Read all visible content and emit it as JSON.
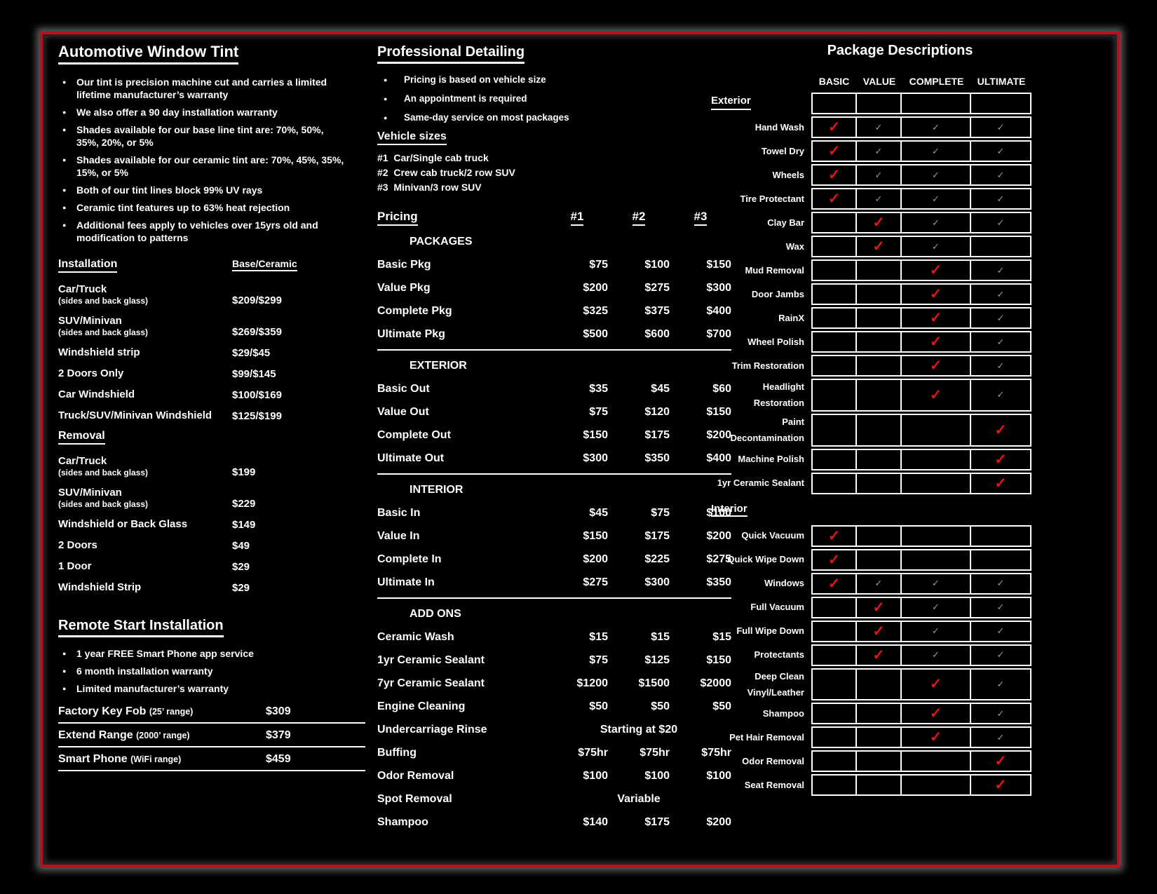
{
  "colors": {
    "frame_red": "#b5121b",
    "check_red": "#e31515",
    "check_gray": "#9a9a9a",
    "grid_line": "#ffffff",
    "background": "#000000",
    "text": "#ffffff"
  },
  "tint": {
    "title": "Automotive Window Tint",
    "bullets": [
      "Our tint is precision machine cut and carries a limited lifetime manufacturer’s warranty",
      "We also offer a 90 day installation warranty",
      "Shades available for our base line tint are: 70%, 50%, 35%, 20%, or 5%",
      "Shades available for our ceramic tint are: 70%, 45%, 35%, 15%, or 5%",
      "Both of our tint lines block 99% UV rays",
      "Ceramic tint features up to 63% heat rejection",
      "Additional fees apply to vehicles over 15yrs old and modification to patterns"
    ],
    "installation": {
      "heading": "Installation",
      "price_heading": "Base/Ceramic",
      "rows": [
        {
          "label": "Car/Truck",
          "sub": "(sides and back glass)",
          "price": "$209/$299"
        },
        {
          "label": "SUV/Minivan",
          "sub": "(sides and back glass)",
          "price": "$269/$359"
        },
        {
          "label": "Windshield strip",
          "sub": "",
          "price": "$29/$45"
        },
        {
          "label": "2 Doors Only",
          "sub": "",
          "price": "$99/$145"
        },
        {
          "label": "Car Windshield",
          "sub": "",
          "price": "$100/$169"
        },
        {
          "label": "Truck/SUV/Minivan Windshield",
          "sub": "",
          "price": "$125/$199"
        }
      ]
    },
    "removal": {
      "heading": "Removal",
      "rows": [
        {
          "label": "Car/Truck",
          "sub": "(sides and back glass)",
          "price": "$199"
        },
        {
          "label": "SUV/Minivan",
          "sub": "(sides and back glass)",
          "price": "$229"
        },
        {
          "label": "Windshield or Back Glass",
          "sub": "",
          "price": "$149"
        },
        {
          "label": "2 Doors",
          "sub": "",
          "price": "$49"
        },
        {
          "label": "1 Door",
          "sub": "",
          "price": "$29"
        },
        {
          "label": "Windshield Strip",
          "sub": "",
          "price": "$29"
        }
      ]
    }
  },
  "remote_start": {
    "title": "Remote Start Installation",
    "bullets": [
      "1 year FREE Smart Phone app service",
      "6 month installation warranty",
      "Limited manufacturer’s warranty"
    ],
    "rows": [
      {
        "label": "Factory Key Fob",
        "sub": "(25’ range)",
        "price": "$309"
      },
      {
        "label": "Extend Range",
        "sub": "(2000’ range)",
        "price": "$379"
      },
      {
        "label": "Smart Phone",
        "sub": "(WiFi range)",
        "price": "$459"
      }
    ]
  },
  "detailing": {
    "title": "Professional Detailing",
    "bullets": [
      "Pricing is based on vehicle size",
      "An appointment is required",
      "Same-day service on most packages"
    ],
    "vehicle_sizes": {
      "heading": "Vehicle sizes",
      "items": [
        "#1  Car/Single cab truck",
        "#2  Crew cab truck/2 row SUV",
        "#3  Minivan/3 row SUV"
      ]
    },
    "pricing": {
      "heading": "Pricing",
      "col_headers": [
        "#1",
        "#2",
        "#3"
      ],
      "sections": [
        {
          "name": "PACKAGES",
          "rows": [
            {
              "label": "Basic Pkg",
              "p": [
                "$75",
                "$100",
                "$150"
              ]
            },
            {
              "label": "Value Pkg",
              "p": [
                "$200",
                "$275",
                "$300"
              ]
            },
            {
              "label": "Complete Pkg",
              "p": [
                "$325",
                "$375",
                "$400"
              ]
            },
            {
              "label": "Ultimate Pkg",
              "p": [
                "$500",
                "$600",
                "$700"
              ]
            }
          ]
        },
        {
          "name": "EXTERIOR",
          "rows": [
            {
              "label": "Basic Out",
              "p": [
                "$35",
                "$45",
                "$60"
              ]
            },
            {
              "label": "Value Out",
              "p": [
                "$75",
                "$120",
                "$150"
              ]
            },
            {
              "label": "Complete Out",
              "p": [
                "$150",
                "$175",
                "$200"
              ]
            },
            {
              "label": "Ultimate Out",
              "p": [
                "$300",
                "$350",
                "$400"
              ]
            }
          ]
        },
        {
          "name": "INTERIOR",
          "rows": [
            {
              "label": "Basic In",
              "p": [
                "$45",
                "$75",
                "$100"
              ]
            },
            {
              "label": "Value In",
              "p": [
                "$150",
                "$175",
                "$200"
              ]
            },
            {
              "label": "Complete In",
              "p": [
                "$200",
                "$225",
                "$275"
              ]
            },
            {
              "label": "Ultimate In",
              "p": [
                "$275",
                "$300",
                "$350"
              ]
            }
          ]
        },
        {
          "name": "ADD ONS",
          "rows": [
            {
              "label": "Ceramic Wash",
              "p": [
                "$15",
                "$15",
                "$15"
              ]
            },
            {
              "label": "1yr Ceramic Sealant",
              "p": [
                "$75",
                "$125",
                "$150"
              ]
            },
            {
              "label": "7yr Ceramic Sealant",
              "p": [
                "$1200",
                "$1500",
                "$2000"
              ]
            },
            {
              "label": "Engine Cleaning",
              "p": [
                "$50",
                "$50",
                "$50"
              ]
            },
            {
              "label": "Undercarriage Rinse",
              "span": "Starting at $20"
            },
            {
              "label": "Buffing",
              "p": [
                "$75hr",
                "$75hr",
                "$75hr"
              ]
            },
            {
              "label": "Odor Removal",
              "p": [
                "$100",
                "$100",
                "$100"
              ]
            },
            {
              "label": "Spot Removal",
              "span": "Variable"
            },
            {
              "label": "Shampoo",
              "p": [
                "$140",
                "$175",
                "$200"
              ]
            }
          ]
        }
      ]
    }
  },
  "packages": {
    "title": "Package Descriptions",
    "col_headers": [
      "BASIC",
      "VALUE",
      "COMPLETE",
      "ULTIMATE"
    ],
    "exterior": {
      "heading": "Exterior",
      "rows": [
        {
          "label": "Hand Wash",
          "checks": [
            "red",
            "gray",
            "gray",
            "gray"
          ]
        },
        {
          "label": "Towel Dry",
          "checks": [
            "red",
            "gray",
            "gray",
            "gray"
          ]
        },
        {
          "label": "Wheels",
          "checks": [
            "red",
            "gray",
            "gray",
            "gray"
          ]
        },
        {
          "label": "Tire Protectant",
          "checks": [
            "red",
            "gray",
            "gray",
            "gray"
          ]
        },
        {
          "label": "Clay Bar",
          "checks": [
            "",
            "red",
            "gray",
            "gray"
          ]
        },
        {
          "label": "Wax",
          "checks": [
            "",
            "red",
            "gray",
            ""
          ]
        },
        {
          "label": "Mud Removal",
          "checks": [
            "",
            "",
            "red",
            "gray"
          ]
        },
        {
          "label": "Door Jambs",
          "checks": [
            "",
            "",
            "red",
            "gray"
          ]
        },
        {
          "label": "RainX",
          "checks": [
            "",
            "",
            "red",
            "gray"
          ]
        },
        {
          "label": "Wheel Polish",
          "checks": [
            "",
            "",
            "red",
            "gray"
          ]
        },
        {
          "label": "Trim Restoration",
          "checks": [
            "",
            "",
            "red",
            "gray"
          ]
        },
        {
          "label": "Headlight Restoration",
          "checks": [
            "",
            "",
            "red",
            "gray"
          ]
        },
        {
          "label": "Paint Decontamination",
          "checks": [
            "",
            "",
            "",
            "red"
          ]
        },
        {
          "label": "Machine Polish",
          "checks": [
            "",
            "",
            "",
            "red"
          ]
        },
        {
          "label": "1yr Ceramic Sealant",
          "checks": [
            "",
            "",
            "",
            "red"
          ]
        }
      ]
    },
    "interior": {
      "heading": "Interior",
      "rows": [
        {
          "label": "Quick Vacuum",
          "checks": [
            "red",
            "",
            "",
            ""
          ]
        },
        {
          "label": "Quick Wipe Down",
          "checks": [
            "red",
            "",
            "",
            ""
          ]
        },
        {
          "label": "Windows",
          "checks": [
            "red",
            "gray",
            "gray",
            "gray"
          ]
        },
        {
          "label": "Full Vacuum",
          "checks": [
            "",
            "red",
            "gray",
            "gray"
          ]
        },
        {
          "label": "Full Wipe Down",
          "checks": [
            "",
            "red",
            "gray",
            "gray"
          ]
        },
        {
          "label": "Protectants",
          "checks": [
            "",
            "red",
            "gray",
            "gray"
          ]
        },
        {
          "label": "Deep Clean Vinyl/Leather",
          "checks": [
            "",
            "",
            "red",
            "gray"
          ]
        },
        {
          "label": "Shampoo",
          "checks": [
            "",
            "",
            "red",
            "gray"
          ]
        },
        {
          "label": "Pet Hair Removal",
          "checks": [
            "",
            "",
            "red",
            "gray"
          ]
        },
        {
          "label": "Odor Removal",
          "checks": [
            "",
            "",
            "",
            "red"
          ]
        },
        {
          "label": "Seat Removal",
          "checks": [
            "",
            "",
            "",
            "red"
          ]
        }
      ]
    }
  }
}
